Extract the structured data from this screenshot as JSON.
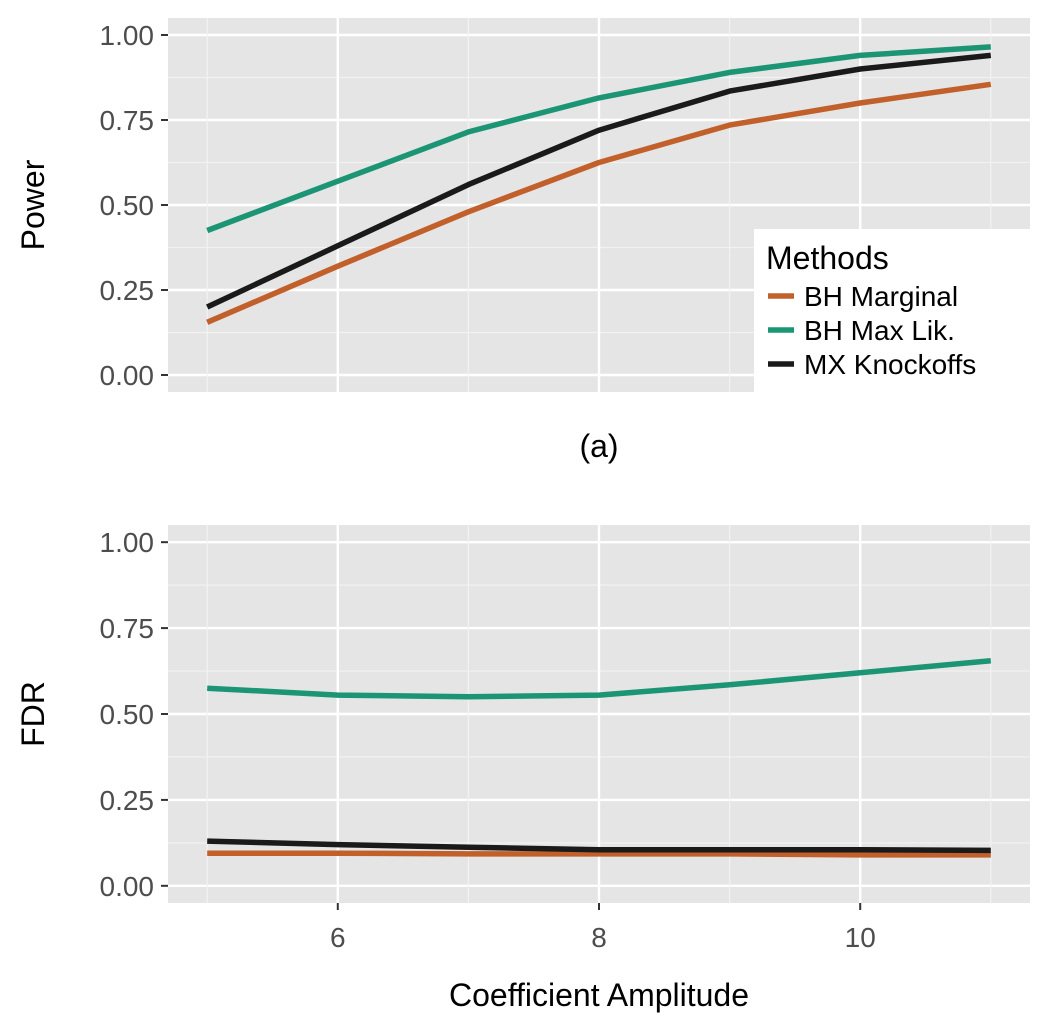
{
  "chart_data": [
    {
      "type": "line",
      "panel_label": "(a)",
      "ylabel": "Power",
      "xlabel": "",
      "x": [
        5,
        6,
        7,
        8,
        9,
        10,
        11
      ],
      "xlim": [
        4.7,
        11.3
      ],
      "ylim": [
        -0.05,
        1.05
      ],
      "yticks": [
        0.0,
        0.25,
        0.5,
        0.75,
        1.0
      ],
      "ytick_labels": [
        "0.00",
        "0.25",
        "0.50",
        "0.75",
        "1.00"
      ],
      "xticks": [],
      "grid": true,
      "background": "#e5e5e5",
      "legend": {
        "title": "Methods",
        "placement": "bottom-right"
      },
      "series": [
        {
          "name": "BH Marginal",
          "color": "#c2602c",
          "values": [
            0.155,
            0.32,
            0.48,
            0.625,
            0.735,
            0.8,
            0.855
          ]
        },
        {
          "name": "BH Max Lik.",
          "color": "#1b9574",
          "values": [
            0.425,
            0.57,
            0.715,
            0.815,
            0.89,
            0.94,
            0.965
          ]
        },
        {
          "name": "MX Knockoffs",
          "color": "#1a1a1a",
          "values": [
            0.2,
            0.38,
            0.56,
            0.72,
            0.835,
            0.9,
            0.94
          ]
        }
      ]
    },
    {
      "type": "line",
      "ylabel": "FDR",
      "xlabel": "Coefficient Amplitude",
      "x": [
        5,
        6,
        7,
        8,
        9,
        10,
        11
      ],
      "xlim": [
        4.7,
        11.3
      ],
      "ylim": [
        -0.05,
        1.05
      ],
      "yticks": [
        0.0,
        0.25,
        0.5,
        0.75,
        1.0
      ],
      "ytick_labels": [
        "0.00",
        "0.25",
        "0.50",
        "0.75",
        "1.00"
      ],
      "xticks": [
        6,
        8,
        10
      ],
      "xtick_labels": [
        "6",
        "8",
        "10"
      ],
      "grid": true,
      "background": "#e5e5e5",
      "series": [
        {
          "name": "BH Marginal",
          "color": "#c2602c",
          "values": [
            0.095,
            0.095,
            0.093,
            0.093,
            0.093,
            0.09,
            0.09
          ]
        },
        {
          "name": "BH Max Lik.",
          "color": "#1b9574",
          "values": [
            0.575,
            0.555,
            0.55,
            0.555,
            0.585,
            0.62,
            0.655
          ]
        },
        {
          "name": "MX Knockoffs",
          "color": "#1a1a1a",
          "values": [
            0.13,
            0.12,
            0.112,
            0.105,
            0.105,
            0.105,
            0.103
          ]
        }
      ]
    }
  ]
}
